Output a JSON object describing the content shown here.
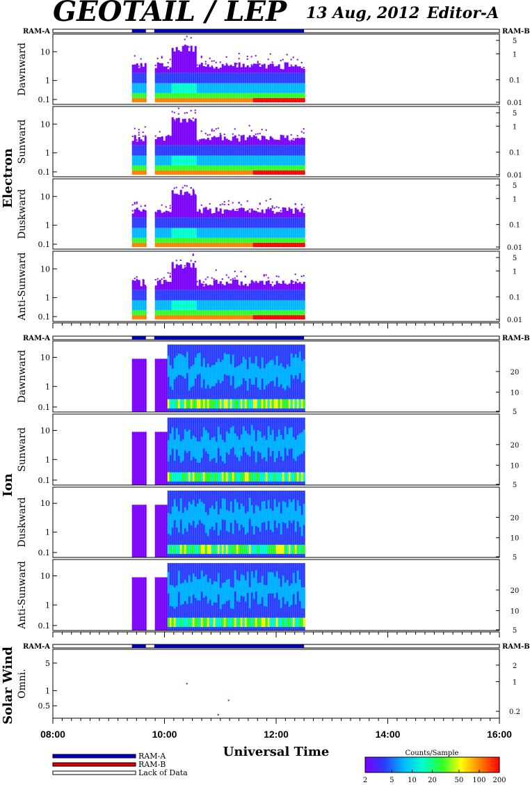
{
  "header": {
    "title": "GEOTAIL / LEP",
    "date": "13 Aug, 2012",
    "editor": "Editor-A"
  },
  "ram_labels": {
    "a": "RAM-A",
    "b": "RAM-B"
  },
  "colors": {
    "ram_a": "#0000cc",
    "ram_b": "#dd0000",
    "frame": "#000000",
    "background": "#ffffff"
  },
  "species": [
    {
      "name": "Electron",
      "panels": [
        "Dawnward",
        "Sunward",
        "Duskward",
        "Anti-Sunward"
      ],
      "left_ticks": [
        "10",
        "1",
        "0.1"
      ],
      "right_ticks": [
        "5",
        "1",
        "0.1",
        "0.01"
      ]
    },
    {
      "name": "Ion",
      "panels": [
        "Dawnward",
        "Sunward",
        "Duskward",
        "Anti-Sunward"
      ],
      "left_ticks": [
        "10",
        "1",
        "0.1"
      ],
      "right_ticks": [
        "20",
        "10",
        "5"
      ]
    },
    {
      "name": "Solar Wind",
      "panels": [
        "Omni."
      ],
      "left_ticks": [
        "5",
        "1",
        "0.5"
      ],
      "right_ticks": [
        "2",
        "1",
        "0.2"
      ]
    }
  ],
  "chart_data": {
    "type": "heatmap",
    "title": "GEOTAIL / LEP",
    "xlabel": "Universal Time",
    "x_ticks": [
      "08:00",
      "10:00",
      "12:00",
      "14:00",
      "16:00"
    ],
    "x_range_hours": [
      8,
      16
    ],
    "data_coverage": {
      "start": "09:25",
      "end": "12:30",
      "gaps": [
        [
          "09:40",
          "09:49"
        ]
      ],
      "mode": "RAM-A"
    },
    "colorbar": {
      "label": "Counts/Sample",
      "ticks": [
        "2",
        "5",
        "10",
        "20",
        "50",
        "100",
        "200"
      ],
      "scale": "log",
      "colors": [
        "#7a00ff",
        "#2a3cff",
        "#00b8ff",
        "#00ffd0",
        "#2cff2c",
        "#ffff00",
        "#ff8000",
        "#ff0000"
      ]
    }
  },
  "legend": [
    {
      "label": "RAM-A",
      "color": "#0000cc"
    },
    {
      "label": "RAM-B",
      "color": "#dd0000"
    },
    {
      "label": "Lack of Data",
      "color": "#ffffff"
    }
  ]
}
